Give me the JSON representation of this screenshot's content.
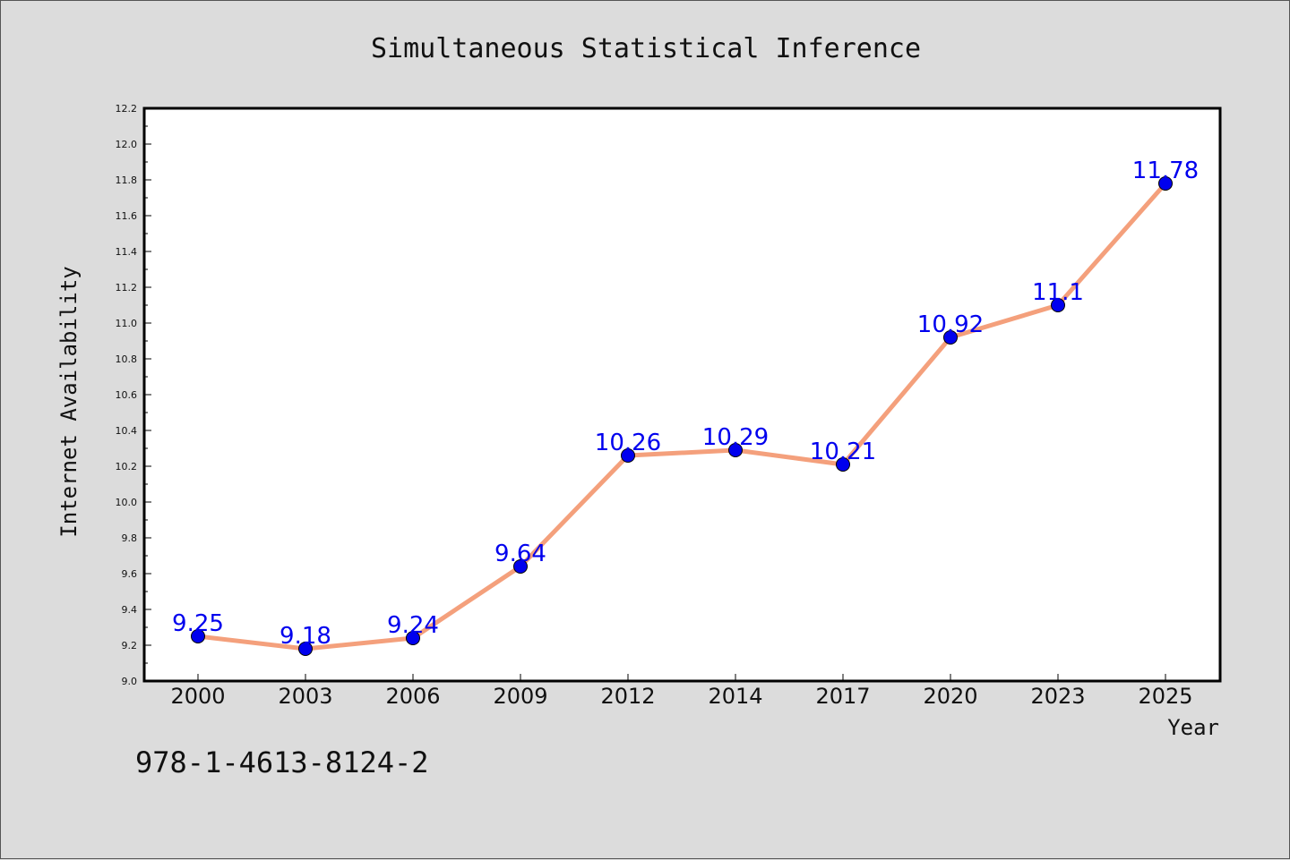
{
  "chart_data": {
    "type": "line",
    "title": "Simultaneous Statistical Inference",
    "xlabel": "Year",
    "ylabel": "Internet Availability",
    "categories": [
      "2000",
      "2003",
      "2006",
      "2009",
      "2012",
      "2014",
      "2017",
      "2020",
      "2023",
      "2025"
    ],
    "values": [
      9.25,
      9.18,
      9.24,
      9.64,
      10.26,
      10.29,
      10.21,
      10.92,
      11.1,
      11.78
    ],
    "data_labels": [
      "9.25",
      "9.18",
      "9.24",
      "9.64",
      "10.26",
      "10.29",
      "10.21",
      "10.92",
      "11.1",
      "11.78"
    ],
    "ylim": [
      9.0,
      12.2
    ],
    "yticks": [
      "9.0",
      "9.2",
      "9.4",
      "9.6",
      "9.8",
      "10.0",
      "10.2",
      "10.4",
      "10.6",
      "10.8",
      "11.0",
      "11.2",
      "11.4",
      "11.6",
      "11.8",
      "12.0",
      "12.2"
    ],
    "grid": false,
    "line_color": "#f4a07c",
    "marker_color": "#0000ee"
  },
  "footer": {
    "isbn": "978-1-4613-8124-2"
  }
}
